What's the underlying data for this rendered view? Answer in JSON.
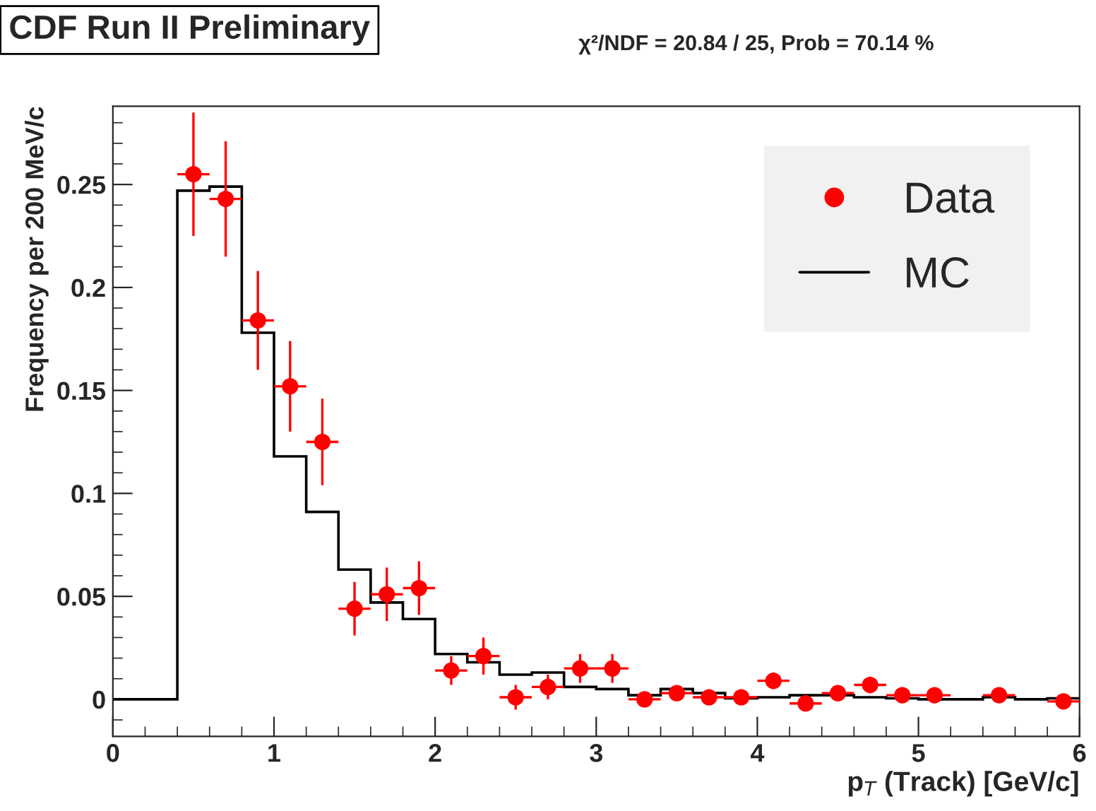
{
  "chart_data": {
    "type": "scatter",
    "title": "CDF Run II Preliminary",
    "annotations": [
      "χ²/NDF = 20.84 / 25, Prob = 70.14 %"
    ],
    "xlabel": "p$_{T}$ (Track) [GeV/c]",
    "ylabel": "Frequency per 200 MeV/c",
    "xlim": [
      0,
      6
    ],
    "xticks": [
      0,
      1,
      2,
      3,
      4,
      5,
      6
    ],
    "ylim": [
      -0.018,
      0.288
    ],
    "yticks": [
      0,
      0.05,
      {
        "value": 0.1,
        "label": "0.1"
      },
      0.15,
      {
        "value": 0.2,
        "label": "0.2"
      },
      0.25
    ],
    "legend": "top right",
    "marker": "circle",
    "grid": false,
    "series": [
      {
        "name": "Data",
        "color": "#ff0000",
        "x": [
          0.5,
          0.7,
          0.9,
          1.1,
          1.3,
          1.5,
          1.7,
          1.9,
          2.1,
          2.3,
          2.5,
          2.7,
          2.9,
          3.1,
          3.3,
          3.5,
          3.7,
          3.9,
          4.1,
          4.3,
          4.5,
          4.7,
          4.9,
          5.1,
          5.3,
          5.5,
          5.7,
          5.9
        ],
        "values": [
          0.255,
          0.243,
          0.184,
          0.152,
          0.125,
          0.044,
          0.051,
          0.054,
          0.014,
          0.021,
          0.001,
          0.006,
          0.015,
          0.015,
          0.0,
          0.003,
          0.001,
          0.001,
          0.009,
          -0.002,
          0.003,
          0.007,
          0.002,
          0.002,
          null,
          0.002,
          null,
          -0.001
        ],
        "errors": [
          0.03,
          0.028,
          0.024,
          0.022,
          0.021,
          0.013,
          0.013,
          0.013,
          0.007,
          0.009,
          0.006,
          0.006,
          0.007,
          0.007,
          0.003,
          0.003,
          0.003,
          0.003,
          0.004,
          0.003,
          0.003,
          0.004,
          0.003,
          0.003,
          null,
          0.003,
          null,
          0.003
        ],
        "xerrors": [
          0.1,
          0.1,
          0.1,
          0.1,
          0.1,
          0.1,
          0.1,
          0.1,
          0.1,
          0.1,
          0.1,
          0.1,
          0.1,
          0.1,
          0.1,
          0.1,
          0.1,
          0.1,
          0.1,
          0.1,
          0.1,
          0.1,
          0.1,
          0.1,
          null,
          0.1,
          null,
          0.1
        ]
      },
      {
        "type": "histogram",
        "name": "MC",
        "color": "#000000",
        "bins": [
          0,
          0.2,
          0.4,
          0.6,
          0.8,
          1.0,
          1.2,
          1.4,
          1.6,
          1.8,
          2.0,
          2.2,
          2.4,
          2.6,
          2.8,
          3.0,
          3.2,
          3.4,
          3.6,
          3.8,
          4.0,
          4.2,
          4.4,
          4.6,
          4.8,
          5.0,
          5.2,
          5.4,
          5.6,
          5.8,
          6.0
        ],
        "values": [
          0,
          0,
          0.247,
          0.249,
          0.178,
          0.118,
          0.091,
          0.063,
          0.047,
          0.039,
          0.022,
          0.018,
          0.012,
          0.013,
          0.006,
          0.005,
          0.002,
          0.005,
          0.003,
          0.0005,
          0.001,
          0.002,
          0.002,
          0.001,
          0.0005,
          0.0,
          0.0,
          0.001,
          0.0,
          0.0005
        ]
      }
    ]
  }
}
